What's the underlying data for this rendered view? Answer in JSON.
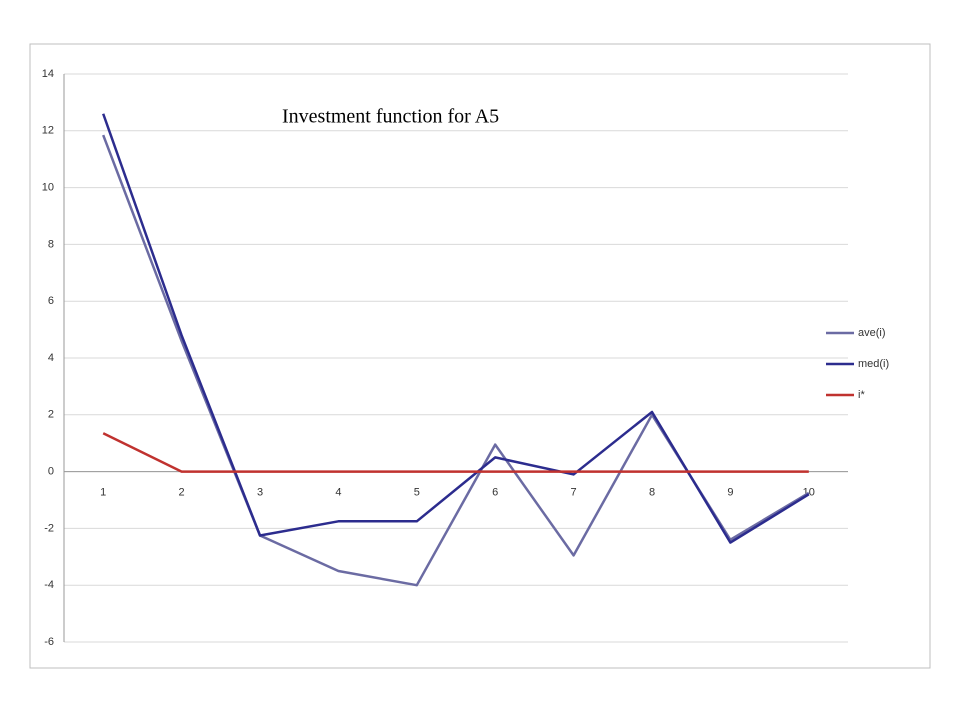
{
  "chart_data": {
    "type": "line",
    "title": "Investment function for A5",
    "categories": [
      "1",
      "2",
      "3",
      "4",
      "5",
      "6",
      "7",
      "8",
      "9",
      "10"
    ],
    "series": [
      {
        "name": "ave(i)",
        "color": "#6b6ba3",
        "values": [
          11.85,
          4.6,
          -2.25,
          -3.5,
          -4.0,
          0.95,
          -2.95,
          2.0,
          -2.4,
          -0.75
        ]
      },
      {
        "name": "med(i)",
        "color": "#2c2c8e",
        "values": [
          12.6,
          4.8,
          -2.25,
          -1.75,
          -1.75,
          0.5,
          -0.1,
          2.1,
          -2.5,
          -0.8
        ]
      },
      {
        "name": "i*",
        "color": "#c0322f",
        "values": [
          1.35,
          0,
          0,
          0,
          0,
          0,
          0,
          0,
          0,
          0
        ]
      }
    ],
    "ylim": [
      -6,
      14
    ],
    "yticks": [
      -6,
      -4,
      -2,
      0,
      2,
      4,
      6,
      8,
      10,
      12,
      14
    ],
    "grid": true,
    "legend": "right"
  }
}
